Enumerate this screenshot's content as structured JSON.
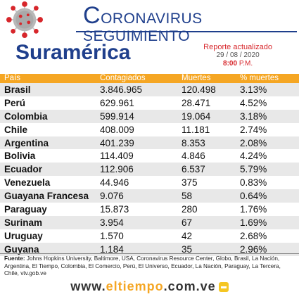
{
  "header": {
    "title_initial": "C",
    "title_rest": "ORONAVIRUS SEGUIMIENTO"
  },
  "region": "Suramérica",
  "report": {
    "line1": "Reporte actualizado",
    "date": "29 / 08 / 2020",
    "time": "8:00",
    "ampm": "P.M."
  },
  "table": {
    "headers": [
      "País",
      "Contagiados",
      "Muertes",
      "% muertes"
    ],
    "rows": [
      [
        "Brasil",
        "3.846.965",
        "120.498",
        "3.13%"
      ],
      [
        "Perú",
        "629.961",
        "28.471",
        "4.52%"
      ],
      [
        "Colombia",
        "599.914",
        "19.064",
        "3.18%"
      ],
      [
        "Chile",
        "408.009",
        "11.181",
        "2.74%"
      ],
      [
        "Argentina",
        "401.239",
        "8.353",
        "2.08%"
      ],
      [
        "Bolivia",
        "114.409",
        "4.846",
        "4.24%"
      ],
      [
        "Ecuador",
        "112.906",
        "6.537",
        "5.79%"
      ],
      [
        "Venezuela",
        "44.946",
        "375",
        "0.83%"
      ],
      [
        "Guayana Francesa",
        "9.076",
        "58",
        "0.64%"
      ],
      [
        "Paraguay",
        "15.873",
        "280",
        "1.76%"
      ],
      [
        "Surinam",
        "3.954",
        "67",
        "1.69%"
      ],
      [
        "Uruguay",
        "1.570",
        "42",
        "2.68%"
      ],
      [
        "Guyana",
        "1.184",
        "35",
        "2.96%"
      ]
    ]
  },
  "footer": {
    "source_label": "Fuente:",
    "source_text": "Johns Hopkins University, Baltimore, USA, Coronavirus Resource Center, Globo, Brasil, La Nación, Argentina, El Tiempo, Colombia, El Comercio, Perú, El Universo, Ecuador, La Nación, Paraguay, La Tercera, Chile, vtv.gob.ve",
    "site_prefix": "www.",
    "site_brand": "eltiempo",
    "site_suffix": ".com.ve"
  },
  "colors": {
    "title_blue": "#1f3f8c",
    "header_orange": "#f5a623",
    "report_red": "#d7262b"
  },
  "icons": [
    "coronavirus-illustration-icon",
    "site-logo-icon"
  ]
}
